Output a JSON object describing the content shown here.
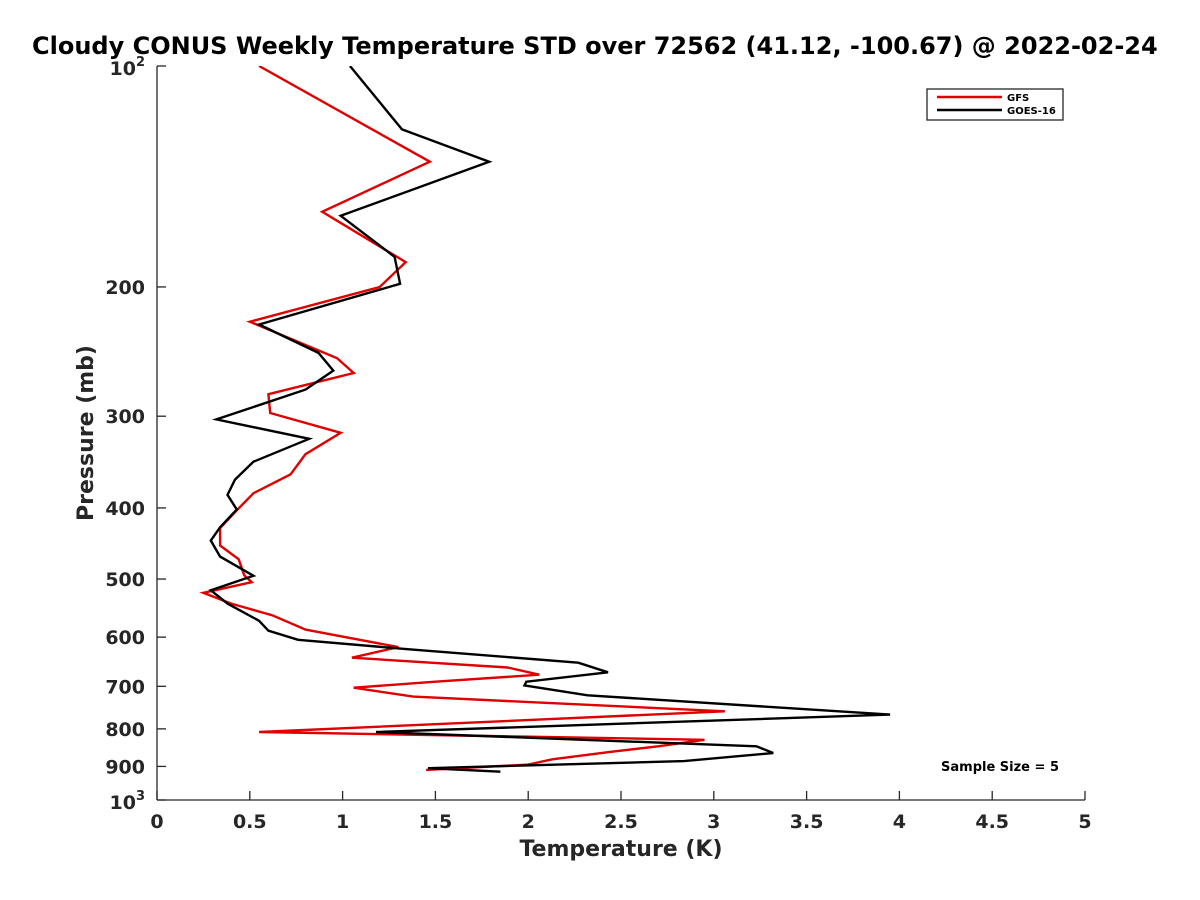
{
  "chart_data": {
    "type": "line",
    "title": "Cloudy CONUS Weekly Temperature STD over 72562 (41.12, -100.67) @ 2022-02-24",
    "xlabel": "Temperature (K)",
    "ylabel": "Pressure (mb)",
    "xlim": [
      0,
      5
    ],
    "ylim": [
      100,
      1000
    ],
    "y_scale": "log",
    "y_reversed": true,
    "x_ticks": [
      "0",
      "0.5",
      "1",
      "1.5",
      "2",
      "2.5",
      "3",
      "3.5",
      "4",
      "4.5",
      "5"
    ],
    "y_ticks": [
      {
        "value": 100,
        "base": "10",
        "exp": "2"
      },
      {
        "value": 200,
        "label": "200"
      },
      {
        "value": 300,
        "label": "300"
      },
      {
        "value": 400,
        "label": "400"
      },
      {
        "value": 500,
        "label": "500"
      },
      {
        "value": 600,
        "label": "600"
      },
      {
        "value": 700,
        "label": "700"
      },
      {
        "value": 800,
        "label": "800"
      },
      {
        "value": 900,
        "label": "900"
      },
      {
        "value": 1000,
        "base": "10",
        "exp": "3"
      }
    ],
    "grid": false,
    "legend_position": "top-right",
    "annotation": "Sample Size = 5",
    "series": [
      {
        "name": "GFS",
        "color": "#e00000",
        "points": [
          [
            0.55,
            100
          ],
          [
            1.47,
            135
          ],
          [
            0.89,
            158
          ],
          [
            1.34,
            185
          ],
          [
            1.2,
            200
          ],
          [
            0.5,
            223
          ],
          [
            0.97,
            250
          ],
          [
            1.06,
            262
          ],
          [
            0.6,
            280
          ],
          [
            0.61,
            297
          ],
          [
            0.99,
            316
          ],
          [
            0.8,
            338
          ],
          [
            0.72,
            360
          ],
          [
            0.52,
            382
          ],
          [
            0.43,
            403
          ],
          [
            0.34,
            426
          ],
          [
            0.34,
            450
          ],
          [
            0.44,
            470
          ],
          [
            0.47,
            494
          ],
          [
            0.51,
            505
          ],
          [
            0.25,
            522
          ],
          [
            0.4,
            540
          ],
          [
            0.62,
            560
          ],
          [
            0.8,
            586
          ],
          [
            1.3,
            619
          ],
          [
            1.05,
            640
          ],
          [
            1.89,
            660
          ],
          [
            2.06,
            675
          ],
          [
            1.5,
            690
          ],
          [
            1.06,
            703
          ],
          [
            1.38,
            723
          ],
          [
            3.06,
            757
          ],
          [
            0.55,
            808
          ],
          [
            2.95,
            828
          ],
          [
            2.7,
            845
          ],
          [
            2.44,
            860
          ],
          [
            2.13,
            880
          ],
          [
            2.0,
            895
          ],
          [
            1.45,
            910
          ]
        ]
      },
      {
        "name": "GOES-16",
        "color": "#000000",
        "points": [
          [
            1.04,
            100
          ],
          [
            1.32,
            122
          ],
          [
            1.79,
            135
          ],
          [
            0.99,
            160
          ],
          [
            1.28,
            182
          ],
          [
            1.31,
            198
          ],
          [
            0.55,
            225
          ],
          [
            0.87,
            246
          ],
          [
            0.95,
            260
          ],
          [
            0.8,
            276
          ],
          [
            0.32,
            303
          ],
          [
            0.82,
            322
          ],
          [
            0.52,
            346
          ],
          [
            0.42,
            366
          ],
          [
            0.38,
            384
          ],
          [
            0.43,
            402
          ],
          [
            0.34,
            425
          ],
          [
            0.29,
            443
          ],
          [
            0.34,
            466
          ],
          [
            0.52,
            495
          ],
          [
            0.29,
            518
          ],
          [
            0.38,
            540
          ],
          [
            0.55,
            570
          ],
          [
            0.6,
            588
          ],
          [
            0.76,
            605
          ],
          [
            1.35,
            623
          ],
          [
            2.27,
            650
          ],
          [
            2.43,
            670
          ],
          [
            1.99,
            690
          ],
          [
            1.98,
            698
          ],
          [
            2.32,
            720
          ],
          [
            3.95,
            765
          ],
          [
            1.18,
            808
          ],
          [
            3.23,
            845
          ],
          [
            3.32,
            863
          ],
          [
            2.84,
            885
          ],
          [
            1.46,
            905
          ],
          [
            1.85,
            915
          ]
        ]
      }
    ]
  }
}
